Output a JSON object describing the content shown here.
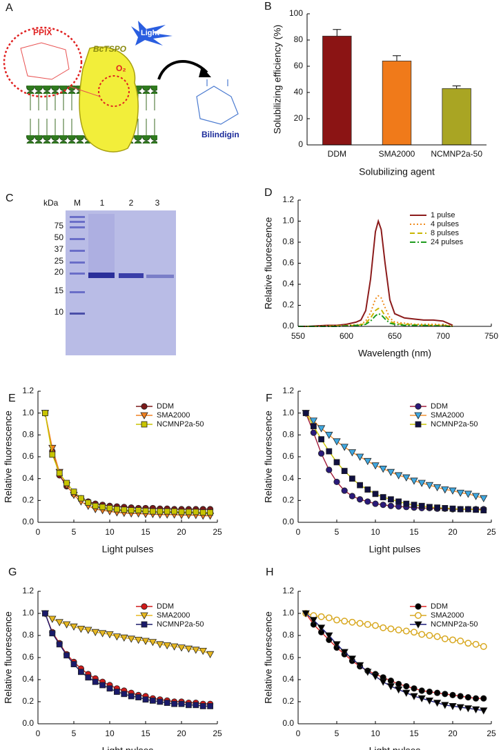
{
  "panel_a": {
    "label": "A",
    "ppix": "PPIX",
    "protein": "BcTSPO",
    "light": "Light",
    "oxygen": "O₂",
    "product": "Bilindigin"
  },
  "panel_c": {
    "label": "C",
    "unit": "kDa",
    "lanes": [
      "M",
      "1",
      "2",
      "3"
    ],
    "markers": [
      "75",
      "50",
      "37",
      "25",
      "20",
      "15",
      "10"
    ]
  },
  "chart_data": [
    {
      "type": "bar",
      "label": "B",
      "categories": [
        "DDM",
        "SMA2000",
        "NCMNP2a-50"
      ],
      "values": [
        83,
        64,
        43
      ],
      "errors": [
        5,
        4,
        2
      ],
      "colors": [
        "#8b1414",
        "#f07a1a",
        "#a9a523"
      ],
      "ylim": [
        0,
        100
      ],
      "yticks": [
        0,
        20,
        40,
        60,
        80,
        100
      ],
      "ylabel": "Solubilizing efficiency (%)",
      "xlabel": "Solubilizing agent"
    },
    {
      "type": "line",
      "label": "D",
      "x": [
        550,
        560,
        570,
        580,
        590,
        600,
        610,
        615,
        620,
        625,
        630,
        633,
        636,
        640,
        645,
        650,
        660,
        670,
        680,
        690,
        700,
        705,
        710
      ],
      "xlim": [
        550,
        750
      ],
      "xticks": [
        550,
        600,
        650,
        700,
        750
      ],
      "ylim": [
        0,
        1.2
      ],
      "yticks": [
        {
          "value": 0,
          "label": "0.0"
        },
        0.2,
        0.4,
        0.6,
        0.8,
        {
          "value": 1,
          "label": "1.0"
        },
        1.2
      ],
      "xlabel": "Wavelength (nm)",
      "ylabel": "Relative fluorescence",
      "legend": "upper right",
      "series": [
        {
          "name": "1 pulse",
          "color": "#8b1a1a",
          "dash": "solid",
          "values": [
            0,
            0,
            0.005,
            0.01,
            0.01,
            0.02,
            0.04,
            0.06,
            0.15,
            0.45,
            0.9,
            1.0,
            0.92,
            0.6,
            0.25,
            0.12,
            0.08,
            0.07,
            0.06,
            0.06,
            0.05,
            0.03,
            0.01
          ]
        },
        {
          "name": "4 pulses",
          "color": "#f08a1a",
          "dash": "dotted",
          "values": [
            0,
            0,
            0,
            0.005,
            0.005,
            0.01,
            0.015,
            0.02,
            0.05,
            0.13,
            0.26,
            0.29,
            0.27,
            0.18,
            0.08,
            0.04,
            0.03,
            0.02,
            0.02,
            0.02,
            0.015,
            0.01,
            0.005
          ]
        },
        {
          "name": "8 pulses",
          "color": "#c8b400",
          "dash": "dashed",
          "values": [
            0,
            0,
            0,
            0,
            0.005,
            0.005,
            0.01,
            0.015,
            0.03,
            0.08,
            0.15,
            0.17,
            0.16,
            0.1,
            0.05,
            0.025,
            0.02,
            0.015,
            0.01,
            0.01,
            0.01,
            0.005,
            0
          ]
        },
        {
          "name": "24 pulses",
          "color": "#1a9a1a",
          "dash": "dashdot",
          "values": [
            0,
            0,
            0,
            0,
            0,
            0.005,
            0.01,
            0.01,
            0.02,
            0.05,
            0.1,
            0.12,
            0.11,
            0.07,
            0.03,
            0.02,
            0.01,
            0.01,
            0.01,
            0.005,
            0.005,
            0,
            0
          ]
        }
      ]
    },
    {
      "type": "line",
      "label": "E",
      "x": [
        1,
        2,
        3,
        4,
        5,
        6,
        7,
        8,
        9,
        10,
        11,
        12,
        13,
        14,
        15,
        16,
        17,
        18,
        19,
        20,
        21,
        22,
        23,
        24
      ],
      "xlim": [
        0,
        25
      ],
      "xticks": [
        0,
        5,
        10,
        15,
        20,
        25
      ],
      "ylim": [
        0,
        1.2
      ],
      "yticks": [
        {
          "value": 0,
          "label": "0.0"
        },
        0.2,
        0.4,
        0.6,
        0.8,
        {
          "value": 1,
          "label": "1.0"
        },
        1.2
      ],
      "xlabel": "Light pulses",
      "ylabel": "Relative fluorescence",
      "legend": "upper right",
      "series": [
        {
          "name": "DDM",
          "color": "#7b1a1a",
          "marker": "circle",
          "values": [
            1.0,
            0.65,
            0.43,
            0.33,
            0.26,
            0.22,
            0.19,
            0.17,
            0.16,
            0.15,
            0.145,
            0.14,
            0.135,
            0.13,
            0.13,
            0.13,
            0.125,
            0.125,
            0.12,
            0.12,
            0.12,
            0.12,
            0.12,
            0.12
          ]
        },
        {
          "name": "SMA2000",
          "color": "#f08020",
          "marker": "triangle-down",
          "values": [
            1.0,
            0.68,
            0.46,
            0.34,
            0.25,
            0.19,
            0.15,
            0.12,
            0.11,
            0.1,
            0.09,
            0.085,
            0.08,
            0.08,
            0.075,
            0.075,
            0.07,
            0.07,
            0.07,
            0.065,
            0.065,
            0.065,
            0.06,
            0.06
          ]
        },
        {
          "name": "NCMNP2a-50",
          "color": "#c8c400",
          "marker": "square",
          "values": [
            1.0,
            0.62,
            0.45,
            0.36,
            0.28,
            0.22,
            0.18,
            0.15,
            0.14,
            0.13,
            0.12,
            0.115,
            0.11,
            0.11,
            0.105,
            0.1,
            0.1,
            0.1,
            0.1,
            0.095,
            0.095,
            0.095,
            0.09,
            0.09
          ]
        }
      ]
    },
    {
      "type": "line",
      "label": "F",
      "x": [
        1,
        2,
        3,
        4,
        5,
        6,
        7,
        8,
        9,
        10,
        11,
        12,
        13,
        14,
        15,
        16,
        17,
        18,
        19,
        20,
        21,
        22,
        23,
        24
      ],
      "xlim": [
        0,
        25
      ],
      "xticks": [
        0,
        5,
        10,
        15,
        20,
        25
      ],
      "ylim": [
        0,
        1.2
      ],
      "yticks": [
        {
          "value": 0,
          "label": "0.0"
        },
        0.2,
        0.4,
        0.6,
        0.8,
        {
          "value": 1,
          "label": "1.0"
        },
        1.2
      ],
      "xlabel": "Light pulses",
      "ylabel": "Relative fluorescence",
      "legend": "upper right",
      "series": [
        {
          "name": "DDM",
          "color": "#2a1a7a",
          "line_color": "#a01a3a",
          "marker": "circle",
          "values": [
            1.0,
            0.82,
            0.63,
            0.48,
            0.37,
            0.29,
            0.24,
            0.21,
            0.19,
            0.17,
            0.16,
            0.15,
            0.145,
            0.14,
            0.135,
            0.13,
            0.13,
            0.125,
            0.125,
            0.12,
            0.12,
            0.12,
            0.12,
            0.12
          ]
        },
        {
          "name": "SMA2000",
          "color": "#40a8e0",
          "line_color": "#f09030",
          "marker": "triangle-down",
          "values": [
            1.0,
            0.93,
            0.86,
            0.8,
            0.74,
            0.69,
            0.64,
            0.6,
            0.56,
            0.52,
            0.49,
            0.46,
            0.43,
            0.41,
            0.38,
            0.36,
            0.34,
            0.32,
            0.3,
            0.29,
            0.27,
            0.26,
            0.24,
            0.22
          ]
        },
        {
          "name": "NCMNP2a-50",
          "color": "#101040",
          "line_color": "#c8c400",
          "marker": "square",
          "values": [
            1.0,
            0.88,
            0.76,
            0.65,
            0.55,
            0.47,
            0.4,
            0.34,
            0.3,
            0.26,
            0.23,
            0.21,
            0.19,
            0.17,
            0.16,
            0.15,
            0.14,
            0.135,
            0.13,
            0.125,
            0.12,
            0.12,
            0.115,
            0.11
          ]
        }
      ]
    },
    {
      "type": "line",
      "label": "G",
      "x": [
        1,
        2,
        3,
        4,
        5,
        6,
        7,
        8,
        9,
        10,
        11,
        12,
        13,
        14,
        15,
        16,
        17,
        18,
        19,
        20,
        21,
        22,
        23,
        24
      ],
      "xlim": [
        0,
        25
      ],
      "xticks": [
        0,
        5,
        10,
        15,
        20,
        25
      ],
      "ylim": [
        0,
        1.2
      ],
      "yticks": [
        {
          "value": 0,
          "label": "0.0"
        },
        0.2,
        0.4,
        0.6,
        0.8,
        {
          "value": 1,
          "label": "1.0"
        },
        1.2
      ],
      "xlabel": "Light pulses",
      "ylabel": "Relative fluorescence",
      "legend": "upper right",
      "series": [
        {
          "name": "DDM",
          "color": "#d01a1a",
          "marker": "circle",
          "values": [
            1.0,
            0.83,
            0.73,
            0.63,
            0.56,
            0.5,
            0.45,
            0.41,
            0.38,
            0.35,
            0.32,
            0.3,
            0.28,
            0.26,
            0.25,
            0.23,
            0.22,
            0.21,
            0.2,
            0.2,
            0.19,
            0.19,
            0.18,
            0.18
          ]
        },
        {
          "name": "SMA2000",
          "color": "#e8b820",
          "marker": "triangle-down",
          "values": [
            1.0,
            0.95,
            0.92,
            0.9,
            0.88,
            0.86,
            0.85,
            0.83,
            0.82,
            0.81,
            0.79,
            0.78,
            0.77,
            0.76,
            0.75,
            0.74,
            0.72,
            0.71,
            0.7,
            0.69,
            0.68,
            0.67,
            0.66,
            0.63
          ]
        },
        {
          "name": "NCMNP2a-50",
          "color": "#1a1a6a",
          "marker": "square",
          "values": [
            1.0,
            0.82,
            0.72,
            0.62,
            0.54,
            0.47,
            0.42,
            0.38,
            0.35,
            0.32,
            0.29,
            0.27,
            0.25,
            0.24,
            0.22,
            0.21,
            0.2,
            0.19,
            0.18,
            0.18,
            0.17,
            0.17,
            0.16,
            0.16
          ]
        }
      ]
    },
    {
      "type": "line",
      "label": "H",
      "x": [
        1,
        2,
        3,
        4,
        5,
        6,
        7,
        8,
        9,
        10,
        11,
        12,
        13,
        14,
        15,
        16,
        17,
        18,
        19,
        20,
        21,
        22,
        23,
        24
      ],
      "xlim": [
        0,
        25
      ],
      "xticks": [
        0,
        5,
        10,
        15,
        20,
        25
      ],
      "ylim": [
        0,
        1.2
      ],
      "yticks": [
        {
          "value": 0,
          "label": "0.0"
        },
        0.2,
        0.4,
        0.6,
        0.8,
        {
          "value": 1,
          "label": "1.0"
        },
        1.2
      ],
      "xlabel": "Light pulses",
      "ylabel": "Relative fluorescence",
      "legend": "upper right",
      "series": [
        {
          "name": "DDM",
          "color": "#000000",
          "line_color": "#e02020",
          "marker": "circle",
          "values": [
            1.0,
            0.9,
            0.83,
            0.76,
            0.69,
            0.63,
            0.57,
            0.52,
            0.48,
            0.45,
            0.42,
            0.39,
            0.36,
            0.34,
            0.32,
            0.3,
            0.29,
            0.28,
            0.27,
            0.26,
            0.25,
            0.24,
            0.23,
            0.23
          ]
        },
        {
          "name": "SMA2000",
          "color": "#d8a820",
          "marker": "circle",
          "filled": false,
          "values": [
            1.0,
            0.98,
            0.97,
            0.96,
            0.94,
            0.93,
            0.92,
            0.91,
            0.9,
            0.89,
            0.87,
            0.86,
            0.85,
            0.84,
            0.83,
            0.81,
            0.8,
            0.79,
            0.77,
            0.76,
            0.75,
            0.73,
            0.72,
            0.7
          ]
        },
        {
          "name": "NCMNP2a-50",
          "color": "#000000",
          "line_color": "#1a1a7a",
          "marker": "triangle-down",
          "values": [
            1.0,
            0.94,
            0.87,
            0.8,
            0.72,
            0.65,
            0.59,
            0.53,
            0.47,
            0.43,
            0.38,
            0.34,
            0.31,
            0.28,
            0.25,
            0.23,
            0.21,
            0.19,
            0.17,
            0.16,
            0.15,
            0.14,
            0.13,
            0.12
          ]
        }
      ]
    }
  ]
}
